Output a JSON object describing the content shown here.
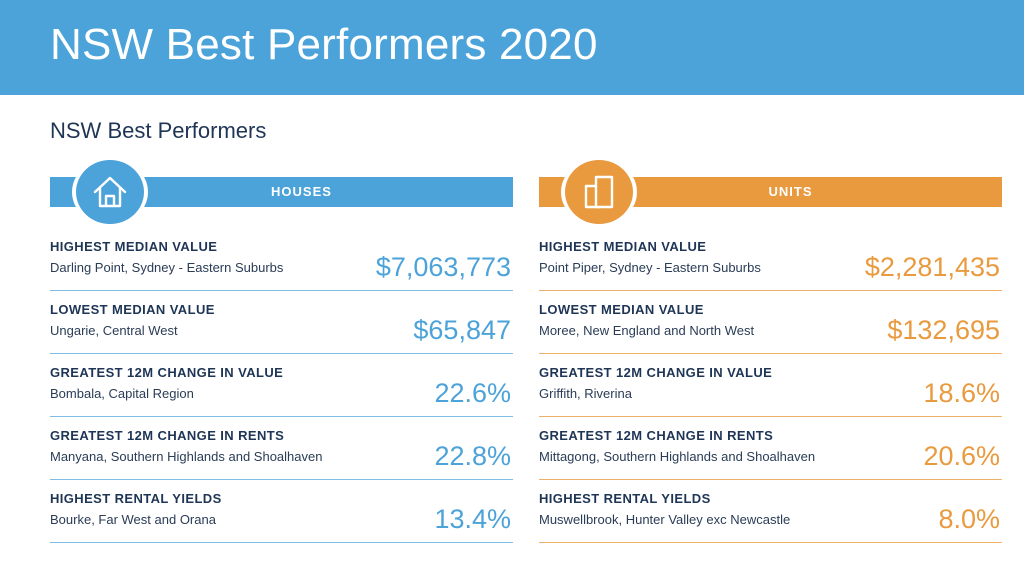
{
  "banner": {
    "title": "NSW Best Performers 2020"
  },
  "subtitle": "NSW Best Performers",
  "colors": {
    "houses_accent": "#4ca3d9",
    "units_accent": "#e99a3e",
    "heading_text": "#1f3556"
  },
  "houses": {
    "header": "HOUSES",
    "icon": "house-icon",
    "rows": [
      {
        "label": "HIGHEST MEDIAN VALUE",
        "place": "Darling Point, Sydney - Eastern Suburbs",
        "value": "$7,063,773"
      },
      {
        "label": "LOWEST MEDIAN VALUE",
        "place": "Ungarie, Central West",
        "value": "$65,847"
      },
      {
        "label": "GREATEST 12M CHANGE IN VALUE",
        "place": "Bombala, Capital Region",
        "value": "22.6%"
      },
      {
        "label": "GREATEST 12M CHANGE IN RENTS",
        "place": "Manyana, Southern Highlands and Shoalhaven",
        "value": "22.8%"
      },
      {
        "label": "HIGHEST RENTAL YIELDS",
        "place": "Bourke, Far West and Orana",
        "value": "13.4%"
      }
    ]
  },
  "units": {
    "header": "UNITS",
    "icon": "apartment-building-icon",
    "rows": [
      {
        "label": "HIGHEST MEDIAN VALUE",
        "place": "Point Piper, Sydney - Eastern Suburbs",
        "value": "$2,281,435"
      },
      {
        "label": "LOWEST MEDIAN VALUE",
        "place": "Moree, New England and North West",
        "value": "$132,695"
      },
      {
        "label": "GREATEST 12M CHANGE IN VALUE",
        "place": "Griffith, Riverina",
        "value": "18.6%"
      },
      {
        "label": "GREATEST 12M CHANGE IN RENTS",
        "place": "Mittagong, Southern Highlands and Shoalhaven",
        "value": "20.6%"
      },
      {
        "label": "HIGHEST RENTAL YIELDS",
        "place": "Muswellbrook, Hunter Valley exc Newcastle",
        "value": "8.0%"
      }
    ]
  }
}
